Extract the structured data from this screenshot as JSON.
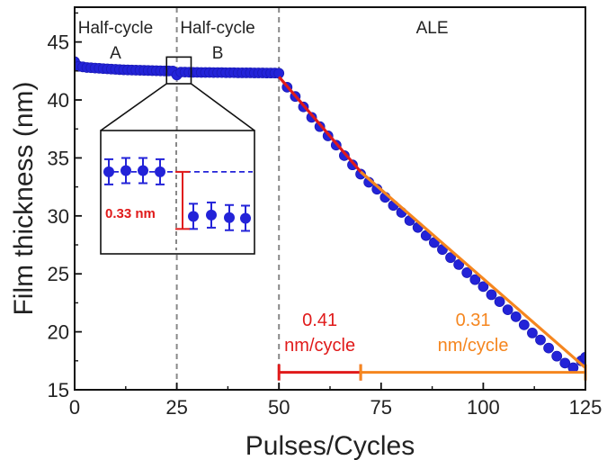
{
  "chart_data": {
    "type": "scatter",
    "xlabel": "Pulses/Cycles",
    "ylabel": "Film thickness (nm)",
    "xlim": [
      0,
      125
    ],
    "ylim": [
      15,
      48
    ],
    "x_ticks": [
      0,
      25,
      50,
      75,
      100,
      125
    ],
    "y_ticks": [
      15,
      20,
      25,
      30,
      35,
      40,
      45
    ],
    "x_minor_step": 12.5,
    "y_minor_step": 2.5,
    "grid": false,
    "colors": {
      "points": "#2323d8",
      "fit1": "#e01a1a",
      "fit2": "#f5861f",
      "divider": "#888888"
    },
    "series": [
      {
        "marker": "circle",
        "x": [
          0,
          1,
          2,
          3,
          4,
          5,
          6,
          7,
          8,
          9,
          10,
          11,
          12,
          13,
          14,
          15,
          16,
          17,
          18,
          19,
          20,
          21,
          22,
          23,
          24,
          25,
          26,
          27,
          28,
          29,
          30,
          31,
          32,
          33,
          34,
          35,
          36,
          37,
          38,
          39,
          40,
          41,
          42,
          43,
          44,
          45,
          46,
          47,
          48,
          49,
          50,
          52,
          54,
          56,
          58,
          60,
          62,
          64,
          66,
          68,
          70,
          72,
          74,
          76,
          78,
          80,
          82,
          84,
          86,
          88,
          90,
          92,
          94,
          96,
          98,
          100,
          102,
          104,
          106,
          108,
          110,
          112,
          114,
          116,
          118,
          120,
          122,
          124,
          125
        ],
        "y": [
          43.3,
          42.9,
          42.85,
          42.8,
          42.78,
          42.75,
          42.73,
          42.7,
          42.68,
          42.66,
          42.64,
          42.62,
          42.6,
          42.59,
          42.58,
          42.57,
          42.56,
          42.55,
          42.54,
          42.53,
          42.52,
          42.51,
          42.5,
          42.5,
          42.49,
          42.15,
          42.4,
          42.4,
          42.39,
          42.38,
          42.38,
          42.37,
          42.37,
          42.37,
          42.36,
          42.36,
          42.36,
          42.35,
          42.35,
          42.35,
          42.34,
          42.34,
          42.34,
          42.34,
          42.33,
          42.33,
          42.33,
          42.32,
          42.32,
          42.32,
          42.3,
          41.1,
          40.3,
          39.4,
          38.5,
          37.7,
          36.9,
          36.1,
          35.2,
          34.4,
          33.6,
          32.9,
          32.3,
          31.6,
          30.9,
          30.3,
          29.6,
          29.0,
          28.3,
          27.7,
          27.1,
          26.4,
          25.8,
          25.1,
          24.5,
          23.9,
          23.2,
          22.6,
          21.9,
          21.3,
          20.6,
          19.9,
          19.3,
          18.6,
          17.9,
          17.3,
          16.9,
          17.5,
          17.8
        ]
      }
    ],
    "fits": [
      {
        "x": [
          50,
          70
        ],
        "y": [
          42.0,
          33.8
        ],
        "label": "0.41 nm/cycle"
      },
      {
        "x": [
          70,
          125
        ],
        "y": [
          33.8,
          16.9
        ],
        "label": "0.31 nm/cycle"
      }
    ],
    "rate_brackets": [
      {
        "x": [
          50,
          70
        ],
        "y": 16.5
      },
      {
        "x": [
          70,
          125
        ],
        "y": 16.5
      }
    ],
    "dividers_x": [
      25,
      50
    ],
    "region_labels": [
      {
        "line1": "Half-cycle",
        "line2": "A",
        "x": 10
      },
      {
        "line1": "Half-cycle",
        "line2": "B",
        "x": 35
      },
      {
        "line1": "ALE",
        "line2": "",
        "x": 87.5
      }
    ],
    "rate_labels": [
      {
        "line1": "0.41",
        "line2": "nm/cycle",
        "x": 60
      },
      {
        "line1": "0.31",
        "line2": "nm/cycle",
        "x": 97.5
      }
    ],
    "inset": {
      "zoom_window": {
        "x": [
          22.5,
          28.5
        ],
        "y": [
          41.4,
          43.7
        ]
      },
      "points_left": [
        33.6,
        33.7,
        33.7,
        33.6
      ],
      "points_right": [
        30.1,
        30.2,
        30.0,
        29.95
      ],
      "annotation": "0.33 nm"
    }
  }
}
